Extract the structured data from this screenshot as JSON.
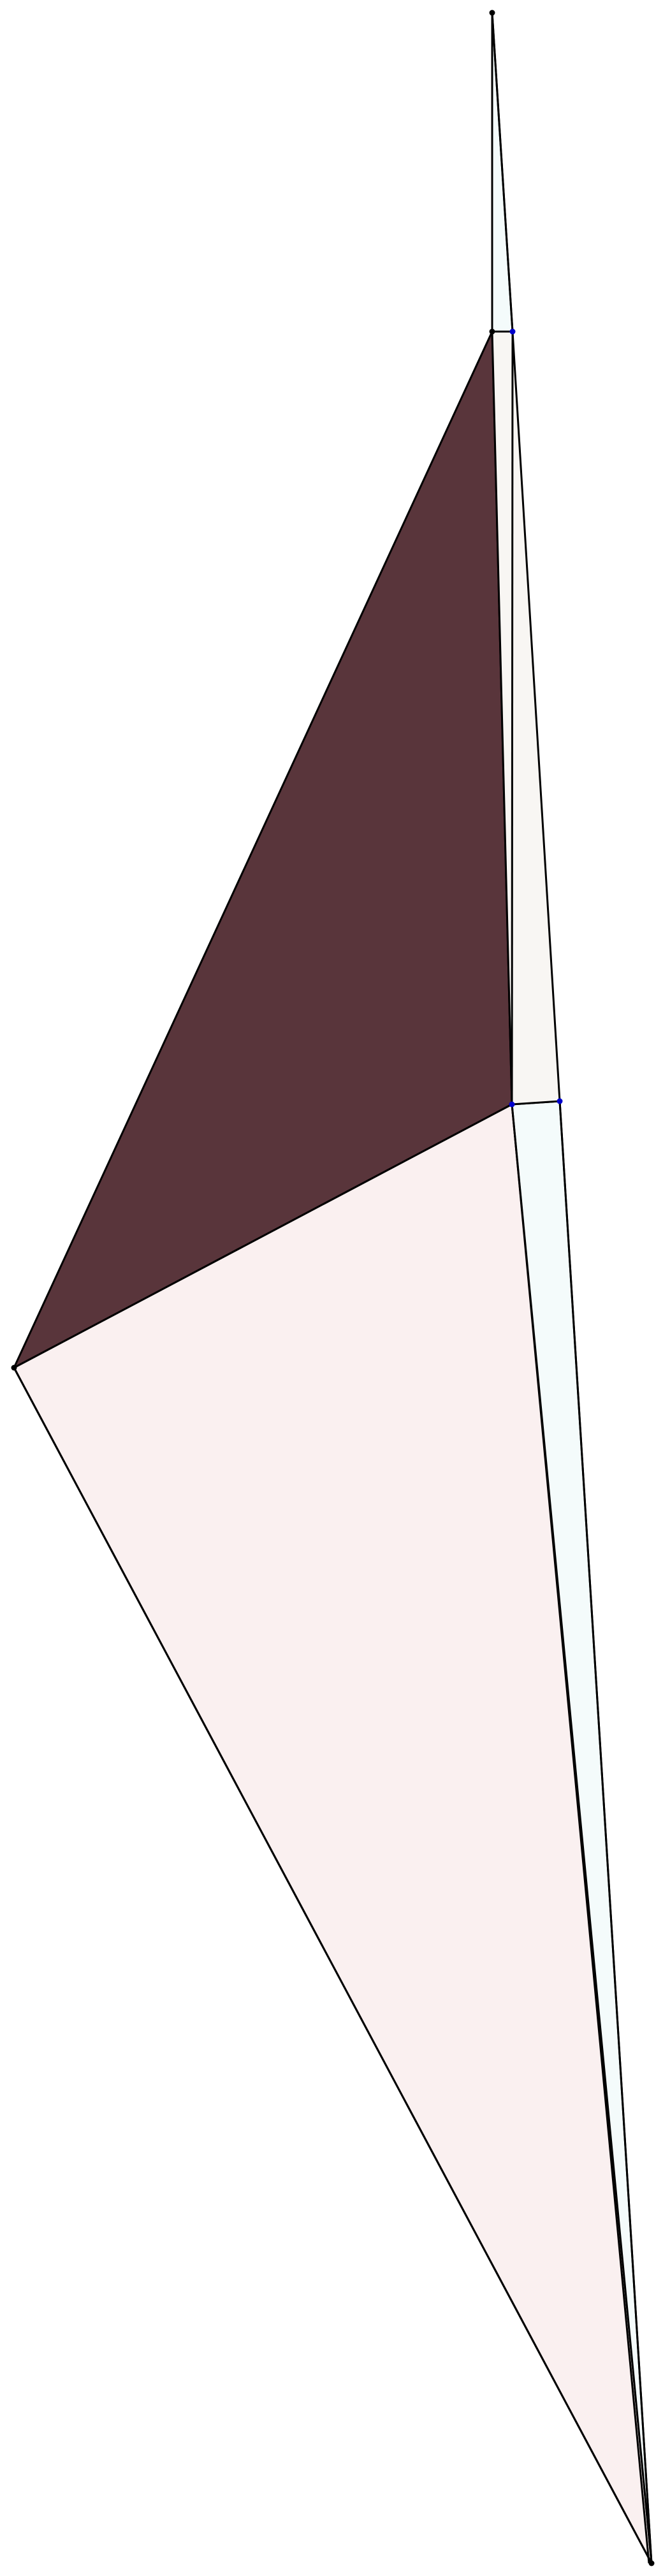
{
  "diagram": {
    "colors": {
      "background": "#ffffff",
      "stroke": "#000000",
      "face_dark": "#59353b",
      "face_pink": "#faf0f0",
      "face_cyan": "#f4fbfb",
      "face_beige": "#f8f6f3",
      "vertex_black": "#000000",
      "vertex_blue": "#0000cc"
    },
    "labels": []
  }
}
